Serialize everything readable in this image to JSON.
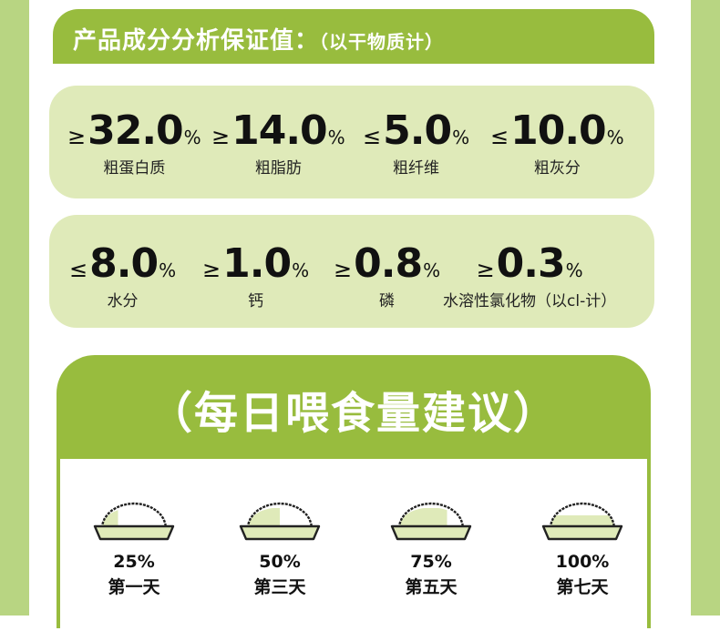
{
  "colors": {
    "accent": "#98bc3e",
    "panel": "#dfeab9",
    "side": "#b8d582"
  },
  "analysis": {
    "title": "产品成分分析保证值：",
    "subtitle": "（以干物质计）"
  },
  "row1": [
    {
      "symbol": "≥",
      "value": "32.0",
      "unit": "%",
      "label": "粗蛋白质"
    },
    {
      "symbol": "≥",
      "value": "14.0",
      "unit": "%",
      "label": "粗脂肪"
    },
    {
      "symbol": "≤",
      "value": "5.0",
      "unit": "%",
      "label": "粗纤维"
    },
    {
      "symbol": "≤",
      "value": "10.0",
      "unit": "%",
      "label": "粗灰分"
    }
  ],
  "row2": [
    {
      "symbol": "≤",
      "value": "8.0",
      "unit": "%",
      "label": "水分"
    },
    {
      "symbol": "≥",
      "value": "1.0",
      "unit": "%",
      "label": "钙"
    },
    {
      "symbol": "≥",
      "value": "0.8",
      "unit": "%",
      "label": "磷"
    },
    {
      "symbol": "≥",
      "value": "0.3",
      "unit": "%",
      "label": "水溶性氯化物（以cl-计）"
    }
  ],
  "feeding": {
    "title": "（每日喂食量建议）",
    "items": [
      {
        "percent": "25%",
        "day": "第一天",
        "fill_fraction": 0.25
      },
      {
        "percent": "50%",
        "day": "第三天",
        "fill_fraction": 0.5
      },
      {
        "percent": "75%",
        "day": "第五天",
        "fill_fraction": 0.75
      },
      {
        "percent": "100%",
        "day": "第七天",
        "fill_fraction": 1.0
      }
    ]
  }
}
